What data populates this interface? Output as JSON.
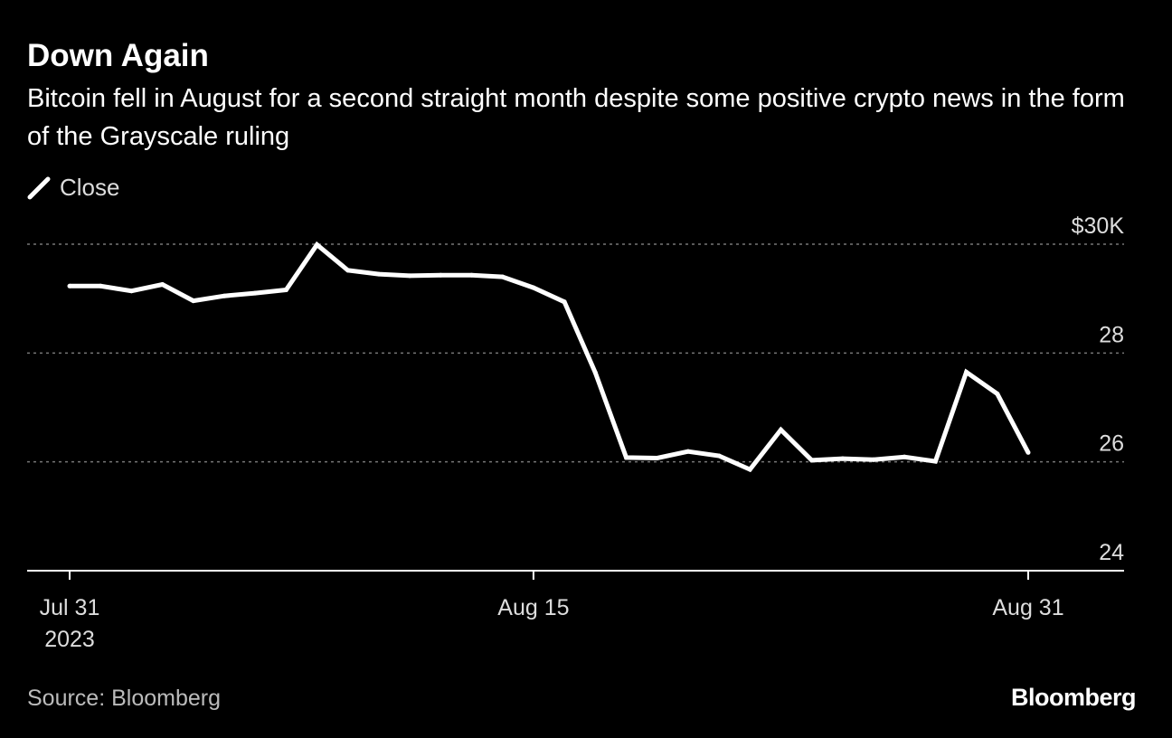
{
  "header": {
    "title": "Down Again",
    "subtitle": "Bitcoin fell in August for a second straight month despite some positive crypto news in the form of the Grayscale ruling"
  },
  "legend": {
    "label": "Close"
  },
  "footer": {
    "source": "Source: Bloomberg",
    "brand": "Bloomberg"
  },
  "colors": {
    "background": "#000000",
    "line": "#ffffff",
    "grid": "#777777",
    "axis": "#ffffff",
    "text": "#ffffff"
  },
  "chart_data": {
    "type": "line",
    "title": "Down Again",
    "subtitle": "Bitcoin fell in August for a second straight month despite some positive crypto news in the form of the Grayscale ruling",
    "xlabel": "",
    "ylabel": "",
    "ylim": [
      24,
      30
    ],
    "yticks": [
      {
        "value": 30,
        "label": "$30K"
      },
      {
        "value": 28,
        "label": "28"
      },
      {
        "value": 26,
        "label": "26"
      },
      {
        "value": 24,
        "label": "24"
      }
    ],
    "xticks": [
      {
        "date": "2023-07-31",
        "label": "Jul 31",
        "sublabel": "2023"
      },
      {
        "date": "2023-08-15",
        "label": "Aug 15",
        "sublabel": ""
      },
      {
        "date": "2023-08-31",
        "label": "Aug 31",
        "sublabel": ""
      }
    ],
    "grid": true,
    "legend_position": "top-left",
    "series": [
      {
        "name": "Close",
        "x": [
          "2023-07-31",
          "2023-08-01",
          "2023-08-02",
          "2023-08-03",
          "2023-08-04",
          "2023-08-05",
          "2023-08-06",
          "2023-08-07",
          "2023-08-08",
          "2023-08-09",
          "2023-08-10",
          "2023-08-11",
          "2023-08-12",
          "2023-08-13",
          "2023-08-14",
          "2023-08-15",
          "2023-08-16",
          "2023-08-17",
          "2023-08-18",
          "2023-08-19",
          "2023-08-20",
          "2023-08-21",
          "2023-08-22",
          "2023-08-23",
          "2023-08-24",
          "2023-08-25",
          "2023-08-26",
          "2023-08-27",
          "2023-08-28",
          "2023-08-29",
          "2023-08-30",
          "2023-08-31"
        ],
        "values": [
          29.23,
          29.23,
          29.14,
          29.26,
          28.96,
          29.05,
          29.1,
          29.16,
          29.99,
          29.52,
          29.45,
          29.42,
          29.43,
          29.43,
          29.4,
          29.2,
          28.94,
          27.64,
          26.08,
          26.07,
          26.19,
          26.11,
          25.86,
          26.59,
          26.03,
          26.06,
          26.04,
          26.09,
          26.01,
          27.65,
          27.25,
          26.17
        ]
      }
    ]
  }
}
